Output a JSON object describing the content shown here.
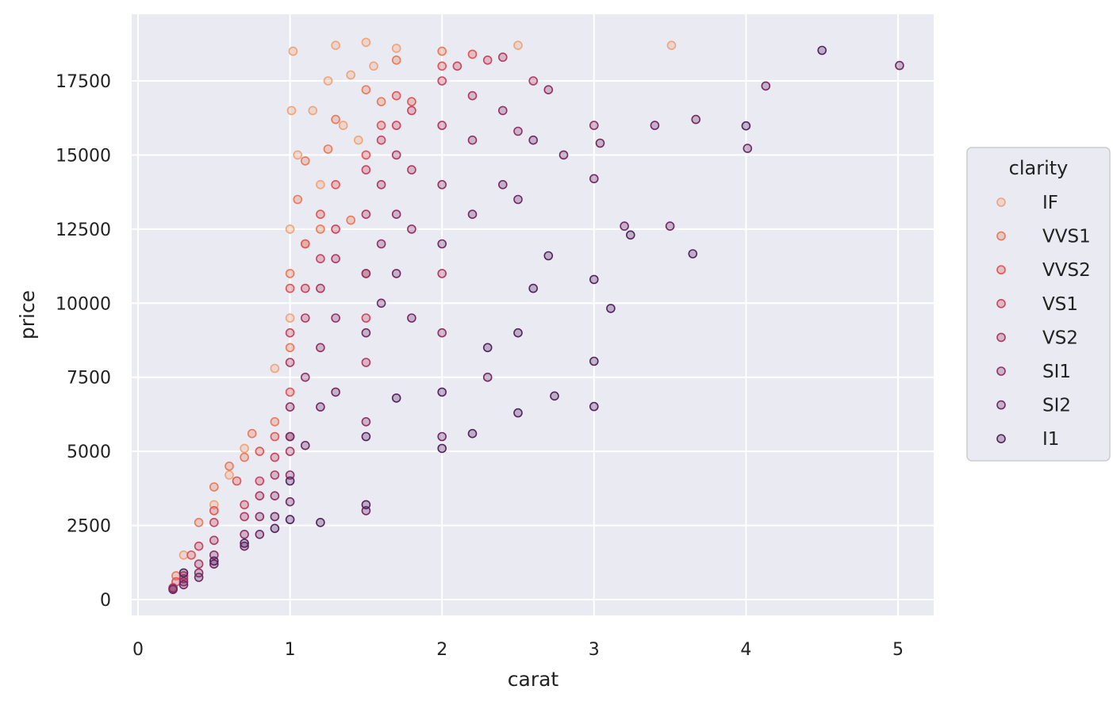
{
  "chart_data": {
    "type": "scatter",
    "title": "",
    "xlabel": "carat",
    "ylabel": "price",
    "xlim": [
      0,
      5.2
    ],
    "ylim": [
      0,
      19000
    ],
    "x_ticks": [
      0,
      1,
      2,
      3,
      4,
      5
    ],
    "y_ticks": [
      0,
      2500,
      5000,
      7500,
      10000,
      12500,
      15000,
      17500
    ],
    "grid": true,
    "background": "#eaeaf2",
    "legend": {
      "title": "clarity",
      "placement": "right",
      "entries": [
        {
          "label": "IF",
          "color": "#eda47a"
        },
        {
          "label": "VVS1",
          "color": "#e87a5a"
        },
        {
          "label": "VVS2",
          "color": "#de5656"
        },
        {
          "label": "VS1",
          "color": "#c9445d"
        },
        {
          "label": "VS2",
          "color": "#ad3a63"
        },
        {
          "label": "SI1",
          "color": "#8e3265"
        },
        {
          "label": "SI2",
          "color": "#6f2a64"
        },
        {
          "label": "I1",
          "color": "#54235f"
        }
      ]
    },
    "series": [
      {
        "name": "IF",
        "points": [
          [
            0.3,
            1500
          ],
          [
            0.5,
            3200
          ],
          [
            0.6,
            4200
          ],
          [
            0.7,
            5100
          ],
          [
            0.9,
            7800
          ],
          [
            1.0,
            9500
          ],
          [
            1.0,
            12500
          ],
          [
            1.01,
            16500
          ],
          [
            1.02,
            18500
          ],
          [
            1.05,
            15000
          ],
          [
            1.1,
            12000
          ],
          [
            1.15,
            16500
          ],
          [
            1.2,
            14000
          ],
          [
            1.25,
            17500
          ],
          [
            1.3,
            18700
          ],
          [
            1.35,
            16000
          ],
          [
            1.4,
            17700
          ],
          [
            1.45,
            15500
          ],
          [
            1.5,
            18800
          ],
          [
            1.55,
            18000
          ],
          [
            1.7,
            18600
          ],
          [
            2.5,
            18700
          ],
          [
            3.51,
            18700
          ]
        ]
      },
      {
        "name": "VVS1",
        "points": [
          [
            0.25,
            800
          ],
          [
            0.4,
            2600
          ],
          [
            0.5,
            3800
          ],
          [
            0.6,
            4500
          ],
          [
            0.7,
            4800
          ],
          [
            0.75,
            5600
          ],
          [
            0.9,
            6000
          ],
          [
            1.0,
            8500
          ],
          [
            1.0,
            11000
          ],
          [
            1.05,
            13500
          ],
          [
            1.1,
            14800
          ],
          [
            1.2,
            12500
          ],
          [
            1.25,
            15200
          ],
          [
            1.3,
            16200
          ],
          [
            1.4,
            12800
          ],
          [
            1.5,
            17200
          ],
          [
            1.6,
            16800
          ],
          [
            1.7,
            18200
          ],
          [
            2.0,
            18500
          ]
        ]
      },
      {
        "name": "VVS2",
        "points": [
          [
            0.25,
            600
          ],
          [
            0.35,
            1500
          ],
          [
            0.5,
            3000
          ],
          [
            0.65,
            4000
          ],
          [
            0.8,
            5000
          ],
          [
            0.9,
            5500
          ],
          [
            1.0,
            7000
          ],
          [
            1.0,
            10500
          ],
          [
            1.1,
            12000
          ],
          [
            1.2,
            13000
          ],
          [
            1.3,
            14000
          ],
          [
            1.5,
            15000
          ],
          [
            1.5,
            11000
          ],
          [
            1.6,
            16000
          ],
          [
            1.7,
            17000
          ],
          [
            1.8,
            16800
          ],
          [
            2.0,
            18000
          ],
          [
            2.2,
            18400
          ]
        ]
      },
      {
        "name": "VS1",
        "points": [
          [
            0.23,
            400
          ],
          [
            0.3,
            800
          ],
          [
            0.4,
            1800
          ],
          [
            0.5,
            2600
          ],
          [
            0.7,
            3200
          ],
          [
            0.8,
            4000
          ],
          [
            0.9,
            4800
          ],
          [
            1.0,
            5500
          ],
          [
            1.0,
            9000
          ],
          [
            1.1,
            10500
          ],
          [
            1.2,
            11500
          ],
          [
            1.3,
            12500
          ],
          [
            1.5,
            9500
          ],
          [
            1.5,
            14500
          ],
          [
            1.6,
            15500
          ],
          [
            1.7,
            16000
          ],
          [
            1.8,
            16500
          ],
          [
            2.0,
            17500
          ],
          [
            2.1,
            18000
          ],
          [
            2.3,
            18200
          ]
        ]
      },
      {
        "name": "VS2",
        "points": [
          [
            0.23,
            380
          ],
          [
            0.3,
            700
          ],
          [
            0.4,
            1200
          ],
          [
            0.5,
            2000
          ],
          [
            0.7,
            2800
          ],
          [
            0.8,
            3500
          ],
          [
            0.9,
            4200
          ],
          [
            1.0,
            5000
          ],
          [
            1.0,
            8000
          ],
          [
            1.1,
            9500
          ],
          [
            1.2,
            10500
          ],
          [
            1.3,
            11500
          ],
          [
            1.5,
            8000
          ],
          [
            1.5,
            13000
          ],
          [
            1.6,
            14000
          ],
          [
            1.7,
            15000
          ],
          [
            1.8,
            14500
          ],
          [
            2.0,
            16000
          ],
          [
            2.0,
            11000
          ],
          [
            2.2,
            17000
          ],
          [
            2.4,
            18300
          ],
          [
            2.6,
            17500
          ]
        ]
      },
      {
        "name": "SI1",
        "points": [
          [
            0.23,
            350
          ],
          [
            0.3,
            600
          ],
          [
            0.4,
            900
          ],
          [
            0.5,
            1500
          ],
          [
            0.7,
            2200
          ],
          [
            0.8,
            2800
          ],
          [
            0.9,
            3500
          ],
          [
            1.0,
            4200
          ],
          [
            1.0,
            6500
          ],
          [
            1.1,
            7500
          ],
          [
            1.2,
            8500
          ],
          [
            1.3,
            9500
          ],
          [
            1.5,
            6000
          ],
          [
            1.5,
            11000
          ],
          [
            1.6,
            12000
          ],
          [
            1.7,
            13000
          ],
          [
            1.8,
            12500
          ],
          [
            2.0,
            14000
          ],
          [
            2.0,
            9000
          ],
          [
            2.2,
            15500
          ],
          [
            2.4,
            16500
          ],
          [
            2.5,
            15800
          ],
          [
            2.7,
            17200
          ],
          [
            3.0,
            16000
          ]
        ]
      },
      {
        "name": "SI2",
        "points": [
          [
            0.23,
            340
          ],
          [
            0.3,
            500
          ],
          [
            0.4,
            750
          ],
          [
            0.5,
            1200
          ],
          [
            0.7,
            1800
          ],
          [
            0.8,
            2200
          ],
          [
            0.9,
            2800
          ],
          [
            1.0,
            3300
          ],
          [
            1.0,
            5500
          ],
          [
            1.1,
            5200
          ],
          [
            1.2,
            6500
          ],
          [
            1.3,
            7000
          ],
          [
            1.5,
            3000
          ],
          [
            1.5,
            9000
          ],
          [
            1.6,
            10000
          ],
          [
            1.7,
            11000
          ],
          [
            1.8,
            9500
          ],
          [
            2.0,
            12000
          ],
          [
            2.0,
            5500
          ],
          [
            2.2,
            13000
          ],
          [
            2.3,
            7500
          ],
          [
            2.4,
            14000
          ],
          [
            2.5,
            13500
          ],
          [
            2.6,
            15500
          ],
          [
            2.8,
            15000
          ],
          [
            3.0,
            14200
          ],
          [
            3.04,
            15400
          ],
          [
            3.2,
            12600
          ],
          [
            3.5,
            12600
          ],
          [
            3.4,
            16000
          ],
          [
            3.67,
            16200
          ],
          [
            4.01,
            15223
          ],
          [
            4.13,
            17329
          ],
          [
            5.01,
            18018
          ]
        ]
      },
      {
        "name": "I1",
        "points": [
          [
            0.3,
            900
          ],
          [
            0.5,
            1300
          ],
          [
            0.7,
            1900
          ],
          [
            0.9,
            2400
          ],
          [
            1.0,
            2700
          ],
          [
            1.0,
            4000
          ],
          [
            1.2,
            2600
          ],
          [
            1.5,
            3200
          ],
          [
            1.5,
            5500
          ],
          [
            1.7,
            6800
          ],
          [
            2.0,
            5100
          ],
          [
            2.0,
            7000
          ],
          [
            2.2,
            5600
          ],
          [
            2.3,
            8500
          ],
          [
            2.5,
            6300
          ],
          [
            2.5,
            9000
          ],
          [
            2.6,
            10500
          ],
          [
            2.7,
            11600
          ],
          [
            2.74,
            6870
          ],
          [
            3.0,
            6512
          ],
          [
            3.0,
            8040
          ],
          [
            3.0,
            10800
          ],
          [
            3.11,
            9823
          ],
          [
            3.24,
            12300
          ],
          [
            3.65,
            11668
          ],
          [
            4.0,
            15984
          ],
          [
            4.5,
            18531
          ]
        ]
      }
    ]
  }
}
